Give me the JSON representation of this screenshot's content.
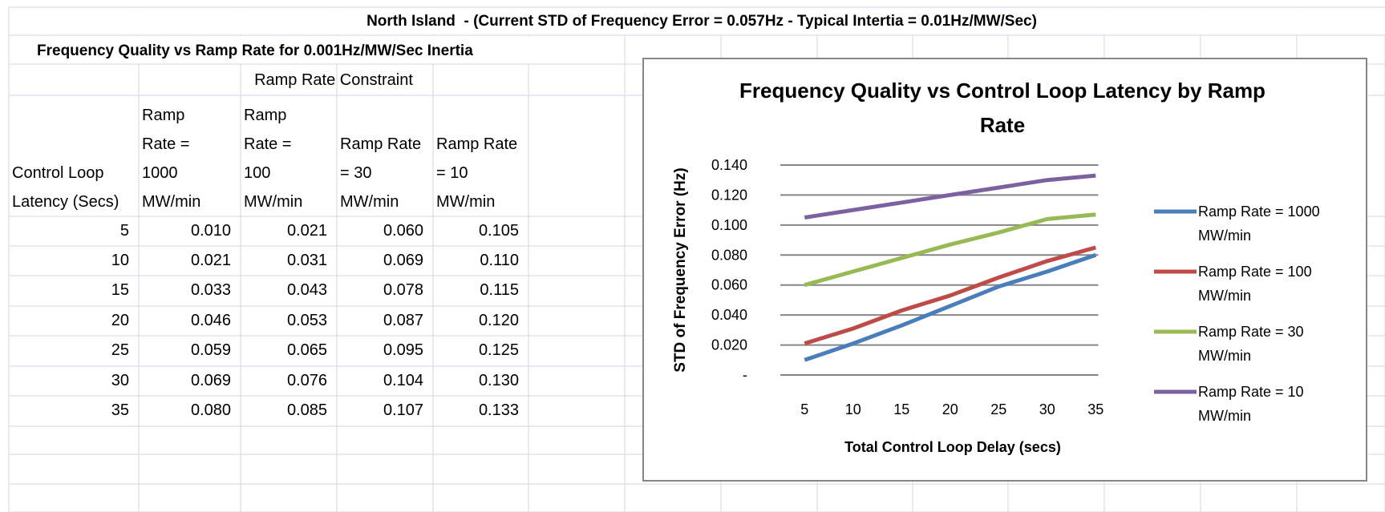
{
  "sheet": {
    "title": "North Island  - (Current STD of Frequency Error = 0.057Hz - Typical Intertia = 0.01Hz/MW/Sec)",
    "subtitle": "Frequency Quality vs Ramp Rate for 0.001Hz/MW/Sec Inertia"
  },
  "table": {
    "group_header": "Ramp Rate Constraint",
    "headers": [
      "Control Loop Latency (Secs)",
      "Ramp Rate = 1000 MW/min",
      "Ramp Rate = 100 MW/min",
      "Ramp Rate = 30 MW/min",
      "Ramp Rate = 10 MW/min"
    ],
    "rows": [
      [
        "5",
        "0.010",
        "0.021",
        "0.060",
        "0.105"
      ],
      [
        "10",
        "0.021",
        "0.031",
        "0.069",
        "0.110"
      ],
      [
        "15",
        "0.033",
        "0.043",
        "0.078",
        "0.115"
      ],
      [
        "20",
        "0.046",
        "0.053",
        "0.087",
        "0.120"
      ],
      [
        "25",
        "0.059",
        "0.065",
        "0.095",
        "0.125"
      ],
      [
        "30",
        "0.069",
        "0.076",
        "0.104",
        "0.130"
      ],
      [
        "35",
        "0.080",
        "0.085",
        "0.107",
        "0.133"
      ]
    ]
  },
  "chart_data": {
    "type": "line",
    "title": "Frequency Quality vs Control Loop Latency by Ramp Rate",
    "x_label": "Total Control Loop Delay (secs)",
    "y_label": "STD of Frequency Error (Hz)",
    "categories": [
      "5",
      "10",
      "15",
      "20",
      "25",
      "30",
      "35"
    ],
    "ylim": [
      0,
      0.14
    ],
    "yticks": [
      {
        "value": 0,
        "label": "-"
      },
      {
        "value": 0.02,
        "label": "0.020"
      },
      {
        "value": 0.04,
        "label": "0.040"
      },
      {
        "value": 0.06,
        "label": "0.060"
      },
      {
        "value": 0.08,
        "label": "0.080"
      },
      {
        "value": 0.1,
        "label": "0.100"
      },
      {
        "value": 0.12,
        "label": "0.120"
      },
      {
        "value": 0.14,
        "label": "0.140"
      }
    ],
    "grid": true,
    "legend": "right",
    "series": [
      {
        "name": "Ramp Rate = 1000 MW/min",
        "color": "#4a7ebb",
        "values": [
          0.01,
          0.021,
          0.033,
          0.046,
          0.059,
          0.069,
          0.08
        ]
      },
      {
        "name": "Ramp Rate = 100 MW/min",
        "color": "#be4b48",
        "values": [
          0.021,
          0.031,
          0.043,
          0.053,
          0.065,
          0.076,
          0.085
        ]
      },
      {
        "name": "Ramp Rate = 30 MW/min",
        "color": "#98b954",
        "values": [
          0.06,
          0.069,
          0.078,
          0.087,
          0.095,
          0.104,
          0.107
        ]
      },
      {
        "name": "Ramp Rate = 10 MW/min",
        "color": "#7d60a0",
        "values": [
          0.105,
          0.11,
          0.115,
          0.12,
          0.125,
          0.13,
          0.133
        ]
      }
    ]
  }
}
